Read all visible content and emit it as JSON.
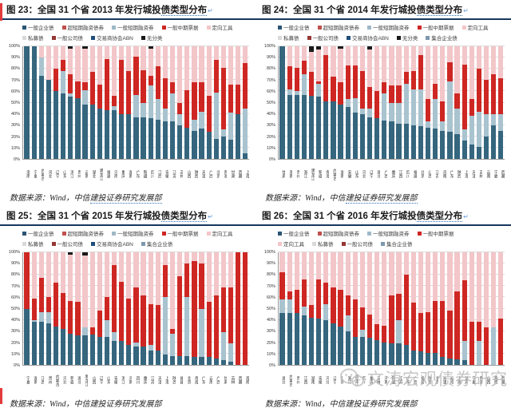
{
  "source": {
    "a": "数据来源：Wind，中信",
    "b": "建投证券研究发展部"
  },
  "watermark": {
    "text": "文涛宏观债券研究",
    "icon": "wechat-icon"
  },
  "legend_colors": {
    "一般企业债": "#2b5574",
    "超短期融资债券": "#c0504d",
    "一般短期融资券": "#9fb9c8",
    "一般中期票据": "#ce2723",
    "定向工具": "#f3c6c9",
    "私募债": "#d9d9d9",
    "一般公司债": "#953735",
    "交易商协会ABN": "#1f4e79",
    "无分类": "#1a1a1a",
    "集合企业债": "#7e97ad"
  },
  "charts": [
    {
      "fig": "图 23",
      "title_main": "图 23：全国 31 个省 2013 年发行城投",
      "title_tail": "债类型分布",
      "legend_rows": [
        [
          "一般企业债",
          "超短期融资债券",
          "一般短期融资券",
          "一般中期票据",
          "定向工具"
        ],
        [
          "私募债",
          "一般公司债",
          "交易商协会ABN",
          "无分类"
        ]
      ]
    },
    {
      "fig": "图 24",
      "title_main": "图 24：全国 31 个省 2014 年发行城投",
      "title_tail": "债类型分布",
      "legend_rows": [
        [
          "一般企业债",
          "超短期融资债券",
          "一般短期融资券",
          "一般中期票据",
          "定向工具"
        ],
        [
          "私募债",
          "一般公司债",
          "交易商协会ABN",
          "无分类",
          "集合企业债"
        ]
      ]
    },
    {
      "fig": "图 25",
      "title_main": "图 25：全国 31 个省 2015 年发行城投",
      "title_tail": "债类型分布",
      "legend_rows": [
        [
          "一般企业债",
          "超短期融资债券",
          "一般短期融资券",
          "一般中期票据",
          "定向工具"
        ],
        [
          "私募债",
          "一般公司债",
          "交易商协会ABN",
          "集合企业债"
        ]
      ]
    },
    {
      "fig": "图 26",
      "title_main": "图 26：全国 31 个省 2016 年发行城投",
      "title_tail": "债类型分布",
      "legend_rows": [
        [
          "一般企业债",
          "超短期融资债券",
          "一般短期融资券",
          "一般中期票据"
        ],
        [
          "定向工具",
          "私募债",
          "一般公司债",
          "集合企业债"
        ]
      ]
    }
  ],
  "chart_data": [
    {
      "type": "bar",
      "subtype": "stacked-100pct",
      "title": "全国31个省2013年发行城投债类型分布",
      "ylabel": "",
      "ylim": [
        0,
        100
      ],
      "ytick_step": 10,
      "grid": true,
      "legend_position": "top",
      "categories": [
        "海南",
        "宁夏",
        "内蒙古",
        "河北",
        "辽宁",
        "山东",
        "浙江",
        "贵州",
        "云南",
        "湖北",
        "黑龙江",
        "福建",
        "河南",
        "重庆",
        "湖南",
        "广东",
        "新疆",
        "四川",
        "江西",
        "安徽",
        "江苏",
        "吉林",
        "山西",
        "陕西",
        "天津",
        "广西",
        "北京",
        "青海",
        "甘肃",
        "西藏",
        "上海"
      ],
      "series": [
        {
          "name": "一般企业债",
          "color": "#35667e",
          "values": [
            100,
            100,
            74,
            70,
            60,
            58,
            55,
            54,
            48,
            48,
            45,
            43,
            43,
            40,
            40,
            37,
            37,
            36,
            35,
            33,
            33,
            30,
            28,
            25,
            27,
            24,
            18,
            20,
            17,
            40,
            5
          ]
        },
        {
          "name": "一般短期融资券",
          "color": "#a9c3cf",
          "values": [
            0,
            0,
            16,
            0,
            0,
            20,
            3,
            0,
            13,
            0,
            0,
            0,
            4,
            0,
            0,
            20,
            13,
            29,
            18,
            12,
            25,
            10,
            0,
            10,
            15,
            0,
            41,
            6,
            24,
            0,
            40
          ]
        },
        {
          "name": "一般中期票据",
          "color": "#ce2723",
          "values": [
            0,
            0,
            0,
            0,
            20,
            10,
            17,
            15,
            7,
            29,
            21,
            46,
            9,
            48,
            38,
            34,
            29,
            9,
            29,
            27,
            10,
            10,
            33,
            33,
            26,
            32,
            29,
            55,
            25,
            26,
            40
          ]
        },
        {
          "name": "定向工具",
          "color": "#f3c6c9",
          "values": [
            0,
            0,
            10,
            30,
            20,
            12,
            23,
            31,
            30,
            23,
            34,
            11,
            44,
            12,
            22,
            9,
            21,
            24,
            18,
            28,
            32,
            50,
            39,
            32,
            32,
            44,
            12,
            19,
            34,
            34,
            15
          ]
        },
        {
          "name": "无分类",
          "color": "#1a1a1a",
          "values": [
            0,
            0,
            0,
            0,
            0,
            0,
            2,
            0,
            2,
            0,
            0,
            0,
            0,
            0,
            0,
            0,
            0,
            2,
            0,
            0,
            0,
            0,
            0,
            0,
            0,
            0,
            0,
            0,
            0,
            0,
            0
          ]
        }
      ]
    },
    {
      "type": "bar",
      "subtype": "stacked-100pct",
      "title": "全国31个省2014年发行城投债类型分布",
      "ylabel": "",
      "ylim": [
        0,
        100
      ],
      "ytick_step": 10,
      "grid": true,
      "legend_position": "top",
      "categories": [
        "甘肃",
        "海南",
        "贵州",
        "浙江",
        "黑龙江",
        "新疆",
        "青海",
        "内蒙古",
        "湖南",
        "安徽",
        "山东",
        "河北",
        "辽宁",
        "湖北",
        "广西",
        "重庆",
        "江西",
        "四川",
        "福建",
        "北京",
        "山西",
        "江苏",
        "河南",
        "广东",
        "陕西",
        "上海",
        "天津",
        "吉林",
        "云南",
        "宁夏",
        "西藏"
      ],
      "series": [
        {
          "name": "一般企业债",
          "color": "#35667e",
          "values": [
            100,
            57,
            57,
            57,
            56,
            55,
            51,
            51,
            48,
            46,
            41,
            40,
            37,
            36,
            34,
            33,
            31,
            31,
            30,
            29,
            28,
            27,
            25,
            24,
            22,
            16,
            13,
            11,
            20,
            30,
            25
          ]
        },
        {
          "name": "一般短期融资券",
          "color": "#a9c3cf",
          "values": [
            0,
            5,
            3,
            18,
            0,
            12,
            0,
            0,
            0,
            7,
            13,
            5,
            8,
            0,
            24,
            17,
            19,
            36,
            32,
            33,
            5,
            26,
            8,
            45,
            23,
            10,
            25,
            31,
            20,
            10,
            15
          ]
        },
        {
          "name": "一般中期票据",
          "color": "#ce2723",
          "values": [
            0,
            20,
            21,
            12,
            21,
            2,
            41,
            22,
            20,
            30,
            29,
            33,
            19,
            24,
            10,
            15,
            15,
            10,
            16,
            30,
            20,
            14,
            18,
            17,
            13,
            58,
            15,
            38,
            30,
            35,
            32
          ]
        },
        {
          "name": "定向工具",
          "color": "#f3c6c9",
          "values": [
            0,
            18,
            19,
            13,
            18,
            28,
            8,
            27,
            30,
            17,
            17,
            22,
            33,
            40,
            32,
            35,
            35,
            23,
            22,
            8,
            47,
            33,
            49,
            14,
            42,
            16,
            47,
            20,
            30,
            25,
            28
          ]
        },
        {
          "name": "无分类",
          "color": "#1a1a1a",
          "values": [
            0,
            0,
            0,
            0,
            5,
            3,
            0,
            0,
            2,
            0,
            0,
            0,
            3,
            0,
            0,
            0,
            0,
            0,
            0,
            0,
            0,
            0,
            0,
            0,
            0,
            0,
            0,
            0,
            0,
            0,
            0
          ]
        }
      ]
    },
    {
      "type": "bar",
      "subtype": "stacked-100pct",
      "title": "全国31个省2015年发行城投债类型分布",
      "ylabel": "",
      "ylim": [
        0,
        100
      ],
      "ytick_step": 10,
      "grid": true,
      "legend_position": "top",
      "categories": [
        "宁夏",
        "湖南",
        "江西",
        "贵州",
        "内蒙古",
        "河北",
        "新疆",
        "湖北",
        "黑龙江",
        "山西",
        "辽宁",
        "山东",
        "安徽",
        "浙江",
        "河南",
        "四川",
        "重庆",
        "江苏",
        "天津",
        "上海",
        "陕西",
        "福建",
        "北京",
        "青海",
        "广东",
        "云南",
        "广西",
        "甘肃",
        "吉林",
        "西藏",
        "海南"
      ],
      "series": [
        {
          "name": "一般企业债",
          "color": "#35667e",
          "values": [
            50,
            38,
            38,
            37,
            34,
            32,
            28,
            26,
            26,
            27,
            25,
            25,
            21,
            21,
            18,
            16,
            16,
            13,
            13,
            9,
            8,
            8,
            8,
            7,
            7,
            7,
            6,
            4,
            3,
            0,
            0
          ]
        },
        {
          "name": "一般短期融资券",
          "color": "#a9c3cf",
          "values": [
            0,
            2,
            9,
            10,
            0,
            0,
            0,
            0,
            7,
            0,
            0,
            15,
            8,
            0,
            0,
            4,
            0,
            5,
            0,
            51,
            20,
            0,
            52,
            0,
            43,
            0,
            0,
            25,
            16,
            0,
            0
          ]
        },
        {
          "name": "一般中期票据",
          "color": "#ce2723",
          "values": [
            50,
            19,
            30,
            13,
            39,
            32,
            29,
            30,
            0,
            6,
            23,
            20,
            60,
            53,
            41,
            49,
            46,
            36,
            40,
            29,
            4,
            71,
            30,
            85,
            40,
            49,
            56,
            40,
            50,
            100,
            100
          ]
        },
        {
          "name": "定向工具",
          "color": "#f3c6c9",
          "values": [
            0,
            41,
            23,
            40,
            27,
            36,
            41,
            44,
            64,
            67,
            52,
            40,
            11,
            26,
            41,
            31,
            38,
            46,
            47,
            11,
            68,
            21,
            10,
            8,
            10,
            44,
            38,
            31,
            31,
            0,
            0
          ]
        },
        {
          "name": "集合企业债",
          "color": "#1a1a1a",
          "values": [
            0,
            0,
            0,
            0,
            0,
            0,
            2,
            0,
            3,
            0,
            0,
            0,
            0,
            0,
            0,
            0,
            0,
            0,
            0,
            0,
            0,
            0,
            0,
            0,
            0,
            0,
            0,
            0,
            0,
            0,
            0
          ]
        }
      ]
    },
    {
      "type": "bar",
      "subtype": "stacked-100pct",
      "title": "全国31个省2016年发行城投债类型分布",
      "ylabel": "",
      "ylim": [
        0,
        100
      ],
      "ytick_step": 10,
      "grid": true,
      "legend_position": "top",
      "categories": [
        "湖北",
        "内蒙古",
        "贵州",
        "江西",
        "湖南",
        "安徽",
        "河北",
        "辽宁",
        "山东",
        "浙江",
        "黑龙江",
        "四川",
        "重庆",
        "吉林",
        "河南",
        "新疆",
        "江苏",
        "广东",
        "广西",
        "福建",
        "陕西",
        "北京",
        "天津",
        "云南",
        "上海",
        "甘肃",
        "宁夏",
        "青海",
        "山西",
        "海南",
        "西藏"
      ],
      "series": [
        {
          "name": "一般企业债",
          "color": "#35667e",
          "values": [
            46,
            46,
            46,
            44,
            42,
            41,
            40,
            37,
            34,
            30,
            25,
            25,
            24,
            22,
            20,
            19,
            19,
            18,
            13,
            12,
            11,
            11,
            7,
            6,
            5,
            4,
            0,
            0,
            0,
            0,
            0
          ]
        },
        {
          "name": "一般短期融资券",
          "color": "#a9c3cf",
          "values": [
            12,
            12,
            0,
            8,
            0,
            0,
            14,
            0,
            0,
            14,
            0,
            6,
            0,
            0,
            0,
            0,
            21,
            0,
            0,
            0,
            0,
            0,
            0,
            0,
            0,
            17,
            0,
            21,
            0,
            33,
            0
          ]
        },
        {
          "name": "一般中期票据",
          "color": "#ce2723",
          "values": [
            24,
            7,
            21,
            24,
            11,
            35,
            19,
            32,
            33,
            18,
            33,
            20,
            21,
            14,
            15,
            43,
            23,
            62,
            42,
            34,
            36,
            46,
            50,
            42,
            60,
            54,
            38,
            17,
            33,
            0,
            41
          ]
        },
        {
          "name": "定向工具",
          "color": "#f3c6c9",
          "values": [
            18,
            35,
            33,
            24,
            47,
            24,
            27,
            31,
            33,
            38,
            42,
            49,
            55,
            64,
            65,
            38,
            37,
            20,
            45,
            54,
            53,
            43,
            43,
            52,
            35,
            25,
            62,
            62,
            67,
            67,
            59
          ]
        }
      ]
    }
  ]
}
